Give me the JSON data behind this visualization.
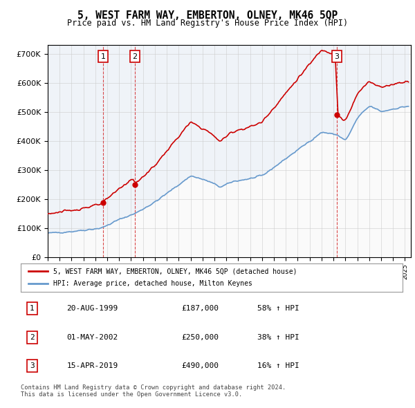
{
  "title": "5, WEST FARM WAY, EMBERTON, OLNEY, MK46 5QP",
  "subtitle": "Price paid vs. HM Land Registry's House Price Index (HPI)",
  "legend_house": "5, WEST FARM WAY, EMBERTON, OLNEY, MK46 5QP (detached house)",
  "legend_hpi": "HPI: Average price, detached house, Milton Keynes",
  "sale_events": [
    {
      "label": "1",
      "date_str": "20-AUG-1999",
      "price_str": "£187,000",
      "pct_str": "58% ↑ HPI",
      "year": 1999.64
    },
    {
      "label": "2",
      "date_str": "01-MAY-2002",
      "price_str": "£250,000",
      "pct_str": "38% ↑ HPI",
      "year": 2002.33
    },
    {
      "label": "3",
      "date_str": "15-APR-2019",
      "price_str": "£490,000",
      "pct_str": "16% ↑ HPI",
      "year": 2019.29
    }
  ],
  "sale_prices": [
    187000,
    250000,
    490000
  ],
  "copyright_text": "Contains HM Land Registry data © Crown copyright and database right 2024.\nThis data is licensed under the Open Government Licence v3.0.",
  "house_color": "#cc0000",
  "hpi_color": "#6699cc",
  "background_color": "#e8f0f8",
  "ylim": [
    0,
    730000
  ],
  "xlim_start": 1995.0,
  "xlim_end": 2025.5
}
